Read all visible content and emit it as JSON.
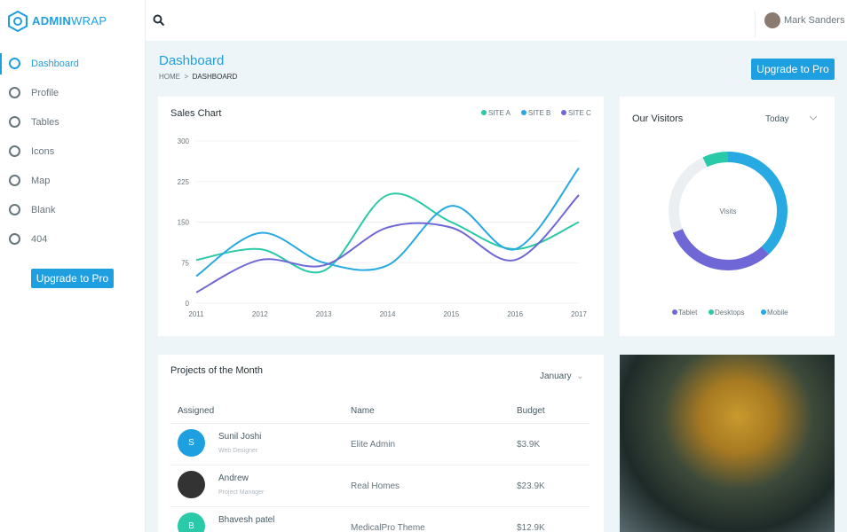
{
  "brand": {
    "bold": "ADMIN",
    "light": "WRAP"
  },
  "sidebar": {
    "nav": [
      "Dashboard",
      "Profile",
      "Tables",
      "Icons",
      "Map",
      "Blank",
      "404"
    ],
    "button": "Upgrade to Pro"
  },
  "header": {
    "user": "Mark Sanders"
  },
  "page": {
    "title": "Dashboard",
    "breadcrumb": [
      "HOME",
      "DASHBOARD"
    ],
    "button": "Upgrade to Pro"
  },
  "chart_data": [
    {
      "type": "line",
      "title": "Sales Chart",
      "categories": [
        "2011",
        "2012",
        "2013",
        "2014",
        "2015",
        "2016",
        "2017"
      ],
      "series": [
        {
          "name": "SITE A",
          "color": "#2ac9a8",
          "values": [
            80,
            100,
            60,
            200,
            150,
            100,
            150
          ]
        },
        {
          "name": "SITE B",
          "color": "#27a9e1",
          "values": [
            50,
            130,
            75,
            70,
            180,
            100,
            250
          ]
        },
        {
          "name": "SITE C",
          "color": "#6f67d6",
          "values": [
            20,
            80,
            70,
            140,
            140,
            80,
            200
          ]
        }
      ],
      "ylim": [
        0,
        300
      ],
      "yticks": [
        0,
        75,
        150,
        225,
        300
      ],
      "grid": true,
      "legend": "top-right"
    },
    {
      "type": "donut",
      "title": "Our Visitors",
      "filter": "Today",
      "center_label": "Visits",
      "categories": [
        "Tablet",
        "Desktops",
        "Mobile"
      ],
      "values": [
        31,
        7,
        38
      ],
      "colors": [
        "#6f67d6",
        "#2ac9a8",
        "#27a9e1"
      ]
    }
  ],
  "projects": {
    "title": "Projects of the Month",
    "filter": "January",
    "columns": [
      "Assigned",
      "Name",
      "Budget"
    ],
    "rows": [
      {
        "avatar": "S",
        "name": "Sunil Joshi",
        "role": "Web Designer",
        "project": "Elite Admin",
        "budget": "$3.9K"
      },
      {
        "name": "Andrew",
        "role": "Project Manager",
        "project": "Real Homes",
        "budget": "$23.9K"
      },
      {
        "avatar": "B",
        "name": "Bhavesh patel",
        "project": "MedicalPro Theme",
        "budget": "$12.9K"
      }
    ]
  }
}
